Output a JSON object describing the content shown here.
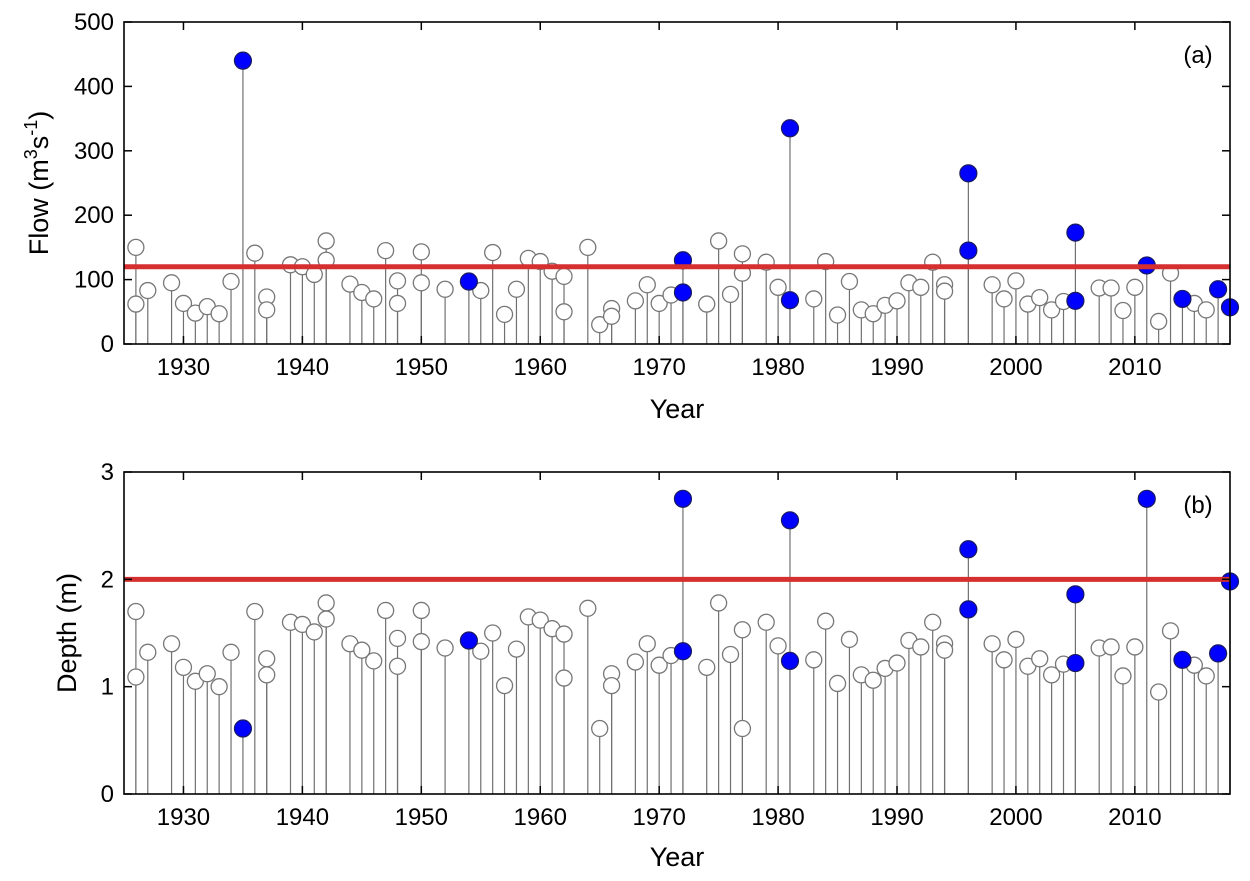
{
  "chart_data": [
    {
      "type": "scatter",
      "style": "stem",
      "panel_label": "(a)",
      "xlabel": "Year",
      "ylabel_main": "Flow (m",
      "ylabel_sup1": "3",
      "ylabel_mid": "s",
      "ylabel_sup2": "-1",
      "ylabel_end": ")",
      "xlim": [
        1925,
        2018
      ],
      "ylim": [
        0,
        500
      ],
      "xticks": [
        1930,
        1940,
        1950,
        1960,
        1970,
        1980,
        1990,
        2000,
        2010
      ],
      "yticks": [
        0,
        100,
        200,
        300,
        400,
        500
      ],
      "xtick_labels": [
        "1930",
        "1940",
        "1950",
        "1960",
        "1970",
        "1980",
        "1990",
        "2000",
        "2010"
      ],
      "ytick_labels": [
        "0",
        "100",
        "200",
        "300",
        "400",
        "500"
      ],
      "threshold": 120,
      "colors": {
        "open_marker": "#777777",
        "highlight": "#0000ff",
        "threshold": "#d62f2f",
        "stem": "#707070"
      },
      "series": [
        {
          "kind": "open",
          "points": [
            [
              1926,
              150
            ],
            [
              1926,
              62
            ],
            [
              1927,
              83
            ],
            [
              1929,
              95
            ],
            [
              1930,
              63
            ],
            [
              1931,
              48
            ],
            [
              1932,
              58
            ],
            [
              1933,
              47
            ],
            [
              1934,
              97
            ],
            [
              1936,
              141
            ],
            [
              1937,
              73
            ],
            [
              1937,
              53
            ],
            [
              1939,
              123
            ],
            [
              1940,
              120
            ],
            [
              1941,
              108
            ],
            [
              1942,
              160
            ],
            [
              1942,
              130
            ],
            [
              1944,
              93
            ],
            [
              1945,
              80
            ],
            [
              1946,
              70
            ],
            [
              1947,
              145
            ],
            [
              1948,
              98
            ],
            [
              1948,
              63
            ],
            [
              1950,
              143
            ],
            [
              1950,
              95
            ],
            [
              1952,
              85
            ],
            [
              1955,
              83
            ],
            [
              1956,
              142
            ],
            [
              1957,
              46
            ],
            [
              1958,
              85
            ],
            [
              1959,
              133
            ],
            [
              1960,
              128
            ],
            [
              1961,
              113
            ],
            [
              1962,
              105
            ],
            [
              1962,
              50
            ],
            [
              1964,
              150
            ],
            [
              1965,
              30
            ],
            [
              1966,
              55
            ],
            [
              1966,
              43
            ],
            [
              1968,
              67
            ],
            [
              1969,
              92
            ],
            [
              1970,
              63
            ],
            [
              1971,
              76
            ],
            [
              1974,
              62
            ],
            [
              1975,
              160
            ],
            [
              1976,
              77
            ],
            [
              1977,
              140
            ],
            [
              1977,
              110
            ],
            [
              1979,
              127
            ],
            [
              1980,
              88
            ],
            [
              1983,
              70
            ],
            [
              1984,
              128
            ],
            [
              1985,
              45
            ],
            [
              1986,
              97
            ],
            [
              1987,
              53
            ],
            [
              1988,
              47
            ],
            [
              1989,
              60
            ],
            [
              1990,
              67
            ],
            [
              1991,
              95
            ],
            [
              1992,
              88
            ],
            [
              1993,
              127
            ],
            [
              1994,
              92
            ],
            [
              1994,
              82
            ],
            [
              1998,
              92
            ],
            [
              1999,
              70
            ],
            [
              2000,
              98
            ],
            [
              2001,
              62
            ],
            [
              2002,
              72
            ],
            [
              2003,
              53
            ],
            [
              2004,
              66
            ],
            [
              2007,
              87
            ],
            [
              2008,
              87
            ],
            [
              2009,
              52
            ],
            [
              2010,
              88
            ],
            [
              2012,
              35
            ],
            [
              2013,
              110
            ],
            [
              2015,
              63
            ],
            [
              2016,
              53
            ]
          ]
        },
        {
          "kind": "highlight",
          "points": [
            [
              1935,
              440
            ],
            [
              1954,
              97
            ],
            [
              1972,
              130
            ],
            [
              1972,
              80
            ],
            [
              1981,
              335
            ],
            [
              1981,
              68
            ],
            [
              1996,
              265
            ],
            [
              1996,
              145
            ],
            [
              2005,
              173
            ],
            [
              2005,
              67
            ],
            [
              2011,
              122
            ],
            [
              2014,
              70
            ],
            [
              2017,
              85
            ],
            [
              2018,
              57
            ]
          ]
        }
      ]
    },
    {
      "type": "scatter",
      "style": "stem",
      "panel_label": "(b)",
      "xlabel": "Year",
      "ylabel": "Depth (m)",
      "xlim": [
        1925,
        2018
      ],
      "ylim": [
        0,
        3
      ],
      "xticks": [
        1930,
        1940,
        1950,
        1960,
        1970,
        1980,
        1990,
        2000,
        2010
      ],
      "yticks": [
        0,
        1,
        2,
        3
      ],
      "xtick_labels": [
        "1930",
        "1940",
        "1950",
        "1960",
        "1970",
        "1980",
        "1990",
        "2000",
        "2010"
      ],
      "ytick_labels": [
        "0",
        "1",
        "2",
        "3"
      ],
      "threshold": 2,
      "colors": {
        "open_marker": "#777777",
        "highlight": "#0000ff",
        "threshold": "#d62f2f",
        "stem": "#707070"
      },
      "series": [
        {
          "kind": "open",
          "points": [
            [
              1926,
              1.7
            ],
            [
              1926,
              1.09
            ],
            [
              1927,
              1.32
            ],
            [
              1929,
              1.4
            ],
            [
              1930,
              1.18
            ],
            [
              1931,
              1.05
            ],
            [
              1932,
              1.12
            ],
            [
              1933,
              1.0
            ],
            [
              1934,
              1.32
            ],
            [
              1936,
              1.7
            ],
            [
              1937,
              1.26
            ],
            [
              1937,
              1.11
            ],
            [
              1939,
              1.6
            ],
            [
              1940,
              1.58
            ],
            [
              1941,
              1.51
            ],
            [
              1942,
              1.78
            ],
            [
              1942,
              1.63
            ],
            [
              1944,
              1.4
            ],
            [
              1945,
              1.34
            ],
            [
              1946,
              1.24
            ],
            [
              1947,
              1.71
            ],
            [
              1948,
              1.45
            ],
            [
              1948,
              1.19
            ],
            [
              1950,
              1.71
            ],
            [
              1950,
              1.42
            ],
            [
              1952,
              1.36
            ],
            [
              1955,
              1.33
            ],
            [
              1956,
              1.5
            ],
            [
              1957,
              1.01
            ],
            [
              1958,
              1.35
            ],
            [
              1959,
              1.65
            ],
            [
              1960,
              1.62
            ],
            [
              1961,
              1.54
            ],
            [
              1962,
              1.49
            ],
            [
              1962,
              1.08
            ],
            [
              1964,
              1.73
            ],
            [
              1965,
              0.61
            ],
            [
              1966,
              1.12
            ],
            [
              1966,
              1.01
            ],
            [
              1968,
              1.23
            ],
            [
              1969,
              1.4
            ],
            [
              1970,
              1.2
            ],
            [
              1971,
              1.29
            ],
            [
              1974,
              1.18
            ],
            [
              1975,
              1.78
            ],
            [
              1976,
              1.3
            ],
            [
              1977,
              1.53
            ],
            [
              1977,
              0.61
            ],
            [
              1979,
              1.6
            ],
            [
              1980,
              1.38
            ],
            [
              1983,
              1.25
            ],
            [
              1984,
              1.61
            ],
            [
              1985,
              1.03
            ],
            [
              1986,
              1.44
            ],
            [
              1987,
              1.11
            ],
            [
              1988,
              1.06
            ],
            [
              1989,
              1.17
            ],
            [
              1990,
              1.22
            ],
            [
              1991,
              1.43
            ],
            [
              1992,
              1.37
            ],
            [
              1993,
              1.6
            ],
            [
              1994,
              1.4
            ],
            [
              1994,
              1.34
            ],
            [
              1998,
              1.4
            ],
            [
              1999,
              1.25
            ],
            [
              2000,
              1.44
            ],
            [
              2001,
              1.19
            ],
            [
              2002,
              1.26
            ],
            [
              2003,
              1.11
            ],
            [
              2004,
              1.21
            ],
            [
              2007,
              1.36
            ],
            [
              2008,
              1.37
            ],
            [
              2009,
              1.1
            ],
            [
              2010,
              1.37
            ],
            [
              2012,
              0.95
            ],
            [
              2013,
              1.52
            ],
            [
              2015,
              1.2
            ],
            [
              2016,
              1.1
            ]
          ]
        },
        {
          "kind": "highlight",
          "points": [
            [
              1935,
              0.61
            ],
            [
              1954,
              1.43
            ],
            [
              1972,
              2.75
            ],
            [
              1972,
              1.33
            ],
            [
              1981,
              2.55
            ],
            [
              1981,
              1.24
            ],
            [
              1996,
              2.28
            ],
            [
              1996,
              1.72
            ],
            [
              2005,
              1.86
            ],
            [
              2005,
              1.22
            ],
            [
              2011,
              2.75
            ],
            [
              2014,
              1.25
            ],
            [
              2017,
              1.31
            ],
            [
              2018,
              1.98
            ]
          ]
        }
      ]
    }
  ]
}
